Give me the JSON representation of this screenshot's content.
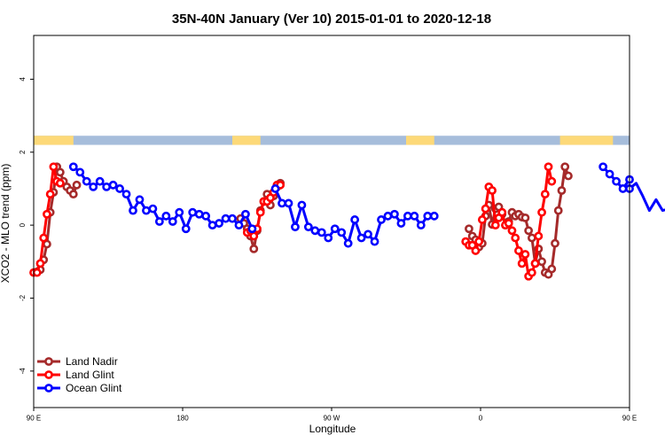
{
  "chart_data": {
    "type": "line",
    "title": "35N-40N January (Ver 10)   2015-01-01 to 2020-12-18",
    "xlabel": "Longitude",
    "ylabel": "XCO2 - MLO trend (ppm)",
    "xlim": [
      90,
      450
    ],
    "ylim": [
      -5,
      5.2
    ],
    "x_ticks": [
      {
        "value": 90,
        "label": "90 E"
      },
      {
        "value": 180,
        "label": "180"
      },
      {
        "value": 270,
        "label": "90 W"
      },
      {
        "value": 360,
        "label": "0"
      },
      {
        "value": 450,
        "label": "90 E"
      },
      {
        "value": 540,
        "label": "180"
      }
    ],
    "y_ticks": [
      {
        "value": 4,
        "label": "4"
      },
      {
        "value": 2,
        "label": "2"
      },
      {
        "value": 0,
        "label": "0"
      },
      {
        "value": -2,
        "label": "-2"
      },
      {
        "value": -4,
        "label": "-4"
      }
    ],
    "legend_position": "bottom-left",
    "land_mask_band": {
      "y_range": [
        2.2,
        2.45
      ],
      "ocean_color": "#a6bddb",
      "land_color": "#fdd978",
      "land_segments": [
        [
          90,
          114
        ],
        [
          210,
          227
        ],
        [
          315,
          332
        ],
        [
          408,
          440
        ],
        [
          450,
          474
        ]
      ]
    },
    "series": [
      {
        "name": "Land Nadir",
        "color": "#a52a2a",
        "segments": [
          [
            [
              92,
              -1.28
            ],
            [
              94,
              -1.22
            ],
            [
              96,
              -0.95
            ],
            [
              98,
              -0.52
            ],
            [
              100,
              0.35
            ],
            [
              102,
              0.9
            ],
            [
              104,
              1.6
            ],
            [
              106,
              1.45
            ],
            [
              108,
              1.2
            ],
            [
              110,
              1.05
            ],
            [
              112,
              0.95
            ],
            [
              114,
              0.85
            ],
            [
              116,
              1.1
            ]
          ],
          [
            [
              215,
              0.18
            ],
            [
              217,
              0.05
            ],
            [
              219,
              -0.1
            ],
            [
              221,
              -0.3
            ],
            [
              223,
              -0.65
            ],
            [
              225,
              -0.15
            ],
            [
              227,
              0.4
            ],
            [
              229,
              0.65
            ],
            [
              231,
              0.85
            ],
            [
              233,
              0.55
            ],
            [
              235,
              0.8
            ],
            [
              237,
              1.05
            ],
            [
              239,
              1.15
            ]
          ],
          [
            [
              353,
              -0.1
            ],
            [
              355,
              -0.3
            ],
            [
              357,
              -0.4
            ],
            [
              359,
              -0.6
            ],
            [
              361,
              -0.5
            ],
            [
              363,
              0.25
            ],
            [
              365,
              0.55
            ],
            [
              367,
              0.02
            ],
            [
              369,
              0.45
            ],
            [
              371,
              0.5
            ],
            [
              373,
              0.3
            ],
            [
              375,
              0.0
            ],
            [
              377,
              0.1
            ],
            [
              379,
              0.35
            ],
            [
              381,
              0.25
            ],
            [
              383,
              0.3
            ],
            [
              385,
              0.22
            ],
            [
              387,
              0.2
            ],
            [
              389,
              -0.15
            ],
            [
              391,
              -0.35
            ],
            [
              393,
              -1.05
            ],
            [
              395,
              -0.65
            ],
            [
              397,
              -1.0
            ],
            [
              399,
              -1.3
            ],
            [
              401,
              -1.35
            ],
            [
              403,
              -1.2
            ],
            [
              405,
              -0.5
            ],
            [
              407,
              0.4
            ],
            [
              409,
              0.95
            ],
            [
              411,
              1.6
            ],
            [
              413,
              1.35
            ]
          ]
        ]
      },
      {
        "name": "Land Glint",
        "color": "#ff0000",
        "segments": [
          [
            [
              90,
              -1.3
            ],
            [
              92,
              -1.3
            ],
            [
              94,
              -1.05
            ],
            [
              96,
              -0.35
            ],
            [
              98,
              0.3
            ],
            [
              100,
              0.85
            ],
            [
              102,
              1.6
            ],
            [
              104,
              1.2
            ],
            [
              106,
              1.15
            ]
          ],
          [
            [
              219,
              -0.2
            ],
            [
              221,
              -0.15
            ],
            [
              223,
              -0.3
            ],
            [
              225,
              -0.1
            ],
            [
              227,
              0.35
            ],
            [
              229,
              0.65
            ],
            [
              231,
              0.65
            ],
            [
              233,
              0.75
            ],
            [
              235,
              0.9
            ],
            [
              237,
              1.1
            ],
            [
              239,
              1.1
            ]
          ],
          [
            [
              351,
              -0.45
            ],
            [
              353,
              -0.55
            ],
            [
              355,
              -0.55
            ],
            [
              357,
              -0.7
            ],
            [
              359,
              -0.45
            ],
            [
              361,
              0.15
            ],
            [
              363,
              0.45
            ],
            [
              365,
              1.05
            ],
            [
              367,
              0.95
            ],
            [
              369,
              0.0
            ],
            [
              371,
              0.2
            ],
            [
              373,
              0.35
            ],
            [
              375,
              0.0
            ],
            [
              377,
              0.05
            ],
            [
              379,
              -0.15
            ],
            [
              381,
              -0.35
            ],
            [
              383,
              -0.7
            ],
            [
              385,
              -1.05
            ],
            [
              387,
              -0.8
            ],
            [
              389,
              -1.4
            ],
            [
              391,
              -1.3
            ],
            [
              393,
              -1.05
            ],
            [
              395,
              -0.3
            ],
            [
              397,
              0.35
            ],
            [
              399,
              0.85
            ],
            [
              401,
              1.6
            ],
            [
              403,
              1.2
            ]
          ]
        ]
      },
      {
        "name": "Ocean Glint",
        "color": "#0000ff",
        "segments": [
          [
            [
              114,
              1.6
            ],
            [
              118,
              1.45
            ],
            [
              122,
              1.2
            ],
            [
              126,
              1.05
            ],
            [
              130,
              1.2
            ],
            [
              134,
              1.05
            ],
            [
              138,
              1.1
            ],
            [
              142,
              1.0
            ],
            [
              146,
              0.85
            ],
            [
              150,
              0.4
            ],
            [
              154,
              0.7
            ],
            [
              158,
              0.4
            ],
            [
              162,
              0.45
            ],
            [
              166,
              0.1
            ],
            [
              170,
              0.25
            ],
            [
              174,
              0.1
            ],
            [
              178,
              0.35
            ],
            [
              182,
              -0.1
            ],
            [
              186,
              0.35
            ],
            [
              190,
              0.3
            ],
            [
              194,
              0.25
            ],
            [
              198,
              0.0
            ],
            [
              202,
              0.05
            ],
            [
              206,
              0.18
            ],
            [
              210,
              0.18
            ],
            [
              214,
              0.0
            ],
            [
              218,
              0.3
            ],
            [
              222,
              -0.1
            ]
          ],
          [
            [
              236,
              1.0
            ],
            [
              240,
              0.6
            ],
            [
              244,
              0.6
            ],
            [
              248,
              -0.05
            ],
            [
              252,
              0.55
            ],
            [
              256,
              -0.05
            ],
            [
              260,
              -0.15
            ],
            [
              264,
              -0.2
            ],
            [
              268,
              -0.35
            ],
            [
              272,
              -0.1
            ],
            [
              276,
              -0.2
            ],
            [
              280,
              -0.5
            ],
            [
              284,
              0.15
            ],
            [
              288,
              -0.35
            ],
            [
              292,
              -0.25
            ],
            [
              296,
              -0.45
            ],
            [
              300,
              0.15
            ],
            [
              304,
              0.25
            ],
            [
              308,
              0.3
            ],
            [
              312,
              0.05
            ],
            [
              316,
              0.25
            ],
            [
              320,
              0.25
            ],
            [
              324,
              0.0
            ],
            [
              328,
              0.25
            ],
            [
              332,
              0.25
            ]
          ],
          [
            [
              434,
              1.6
            ],
            [
              438,
              1.4
            ],
            [
              442,
              1.2
            ],
            [
              446,
              1.0
            ],
            [
              450,
              1.25
            ]
          ],
          [
            [
              450,
              1.0
            ],
            [
              454,
              1.15
            ],
            [
              458,
              0.8
            ],
            [
              462,
              0.4
            ],
            [
              466,
              0.7
            ],
            [
              470,
              0.4
            ],
            [
              474,
              0.45
            ],
            [
              478,
              0.1
            ],
            [
              482,
              0.25
            ]
          ]
        ]
      }
    ]
  }
}
